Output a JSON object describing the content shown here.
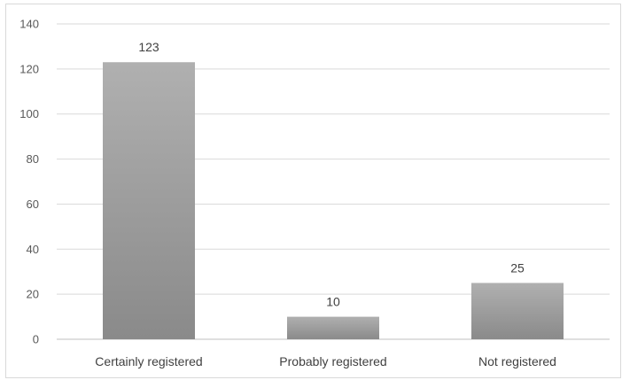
{
  "chart_data": {
    "type": "bar",
    "categories": [
      "Certainly registered",
      "Probably registered",
      "Not registered"
    ],
    "values": [
      123,
      10,
      25
    ],
    "data_labels": [
      "123",
      "10",
      "25"
    ],
    "ylim": [
      0,
      140
    ],
    "yticks": [
      0,
      20,
      40,
      60,
      80,
      100,
      120,
      140
    ],
    "ytick_labels": [
      "0",
      "20",
      "40",
      "60",
      "80",
      "100",
      "120",
      "140"
    ],
    "grid": true,
    "legend": "none",
    "colors": {
      "bar_top": "#b0b0b0",
      "bar_bottom": "#8a8a8a",
      "gridline": "#d9d9d9",
      "axis": "#bfbfbf"
    }
  }
}
